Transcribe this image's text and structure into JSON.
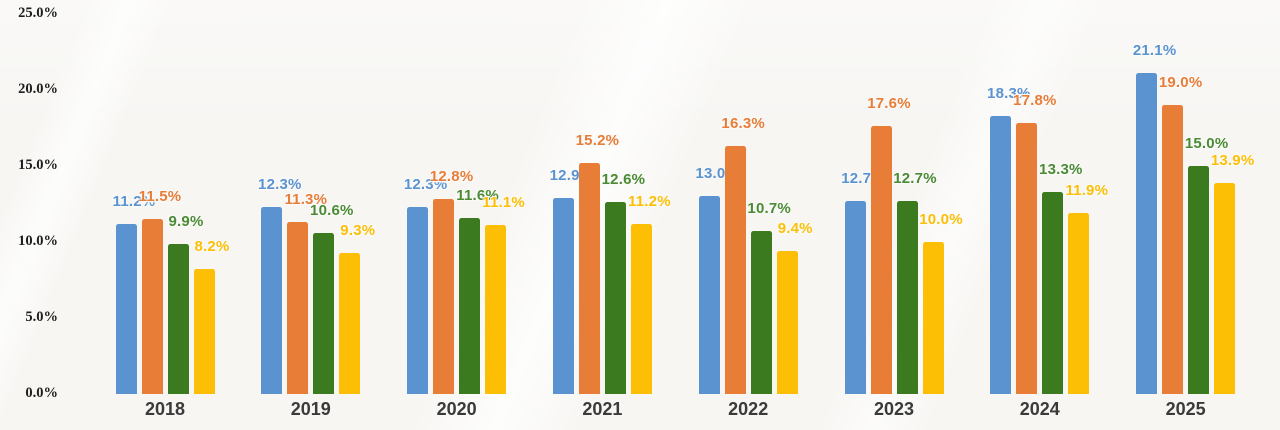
{
  "chart_data": {
    "type": "bar",
    "title": "",
    "xlabel": "",
    "ylabel": "",
    "categories": [
      "2018",
      "2019",
      "2020",
      "2021",
      "2022",
      "2023",
      "2024",
      "2025"
    ],
    "series": [
      {
        "name": "blue",
        "color": "#5b93d1",
        "values": [
          11.2,
          12.3,
          12.3,
          12.9,
          13.0,
          12.7,
          18.3,
          21.1
        ]
      },
      {
        "name": "orange",
        "color": "#e87d38",
        "values": [
          11.5,
          11.3,
          12.8,
          15.2,
          16.3,
          17.6,
          17.8,
          19.0
        ]
      },
      {
        "name": "green",
        "color": "#3b7a1e",
        "values": [
          9.9,
          10.6,
          11.6,
          12.6,
          10.7,
          12.7,
          13.3,
          15.0
        ]
      },
      {
        "name": "yellow",
        "color": "#fcbf06",
        "values": [
          8.2,
          9.3,
          11.1,
          11.2,
          9.4,
          10.0,
          11.9,
          13.9
        ]
      }
    ],
    "data_labels": [
      [
        "11.2%",
        "12.3%",
        "12.3%",
        "12.9%",
        "13.0%",
        "12.7%",
        "18.3%",
        "21.1%"
      ],
      [
        "11.5%",
        "11.3%",
        "12.8%",
        "15.2%",
        "16.3%",
        "17.6%",
        "17.8%",
        "19.0%"
      ],
      [
        "9.9%",
        "10.6%",
        "11.6%",
        "12.6%",
        "10.7%",
        "12.7%",
        "13.3%",
        "15.0%"
      ],
      [
        "8.2%",
        "9.3%",
        "11.1%",
        "11.2%",
        "9.4%",
        "10.0%",
        "11.9%",
        "13.9%"
      ]
    ],
    "yticks": [
      {
        "value": 0,
        "label": "0.0%"
      },
      {
        "value": 5,
        "label": "5.0%"
      },
      {
        "value": 10,
        "label": "10.0%"
      },
      {
        "value": 15,
        "label": "15.0%"
      },
      {
        "value": 20,
        "label": "20.0%"
      },
      {
        "value": 25,
        "label": "25.0%"
      }
    ],
    "ylim": [
      0,
      25
    ],
    "grid": false,
    "legend": "none",
    "value_label_colors": {
      "blue": "#5b93d1",
      "orange": "#e87d38",
      "green": "#4a8b34",
      "yellow": "#fcbf06"
    }
  },
  "layout_colors": {
    "background": "#f7f6f3",
    "axis_text": "#1e1e1e",
    "category_text": "#3a3a3a"
  }
}
